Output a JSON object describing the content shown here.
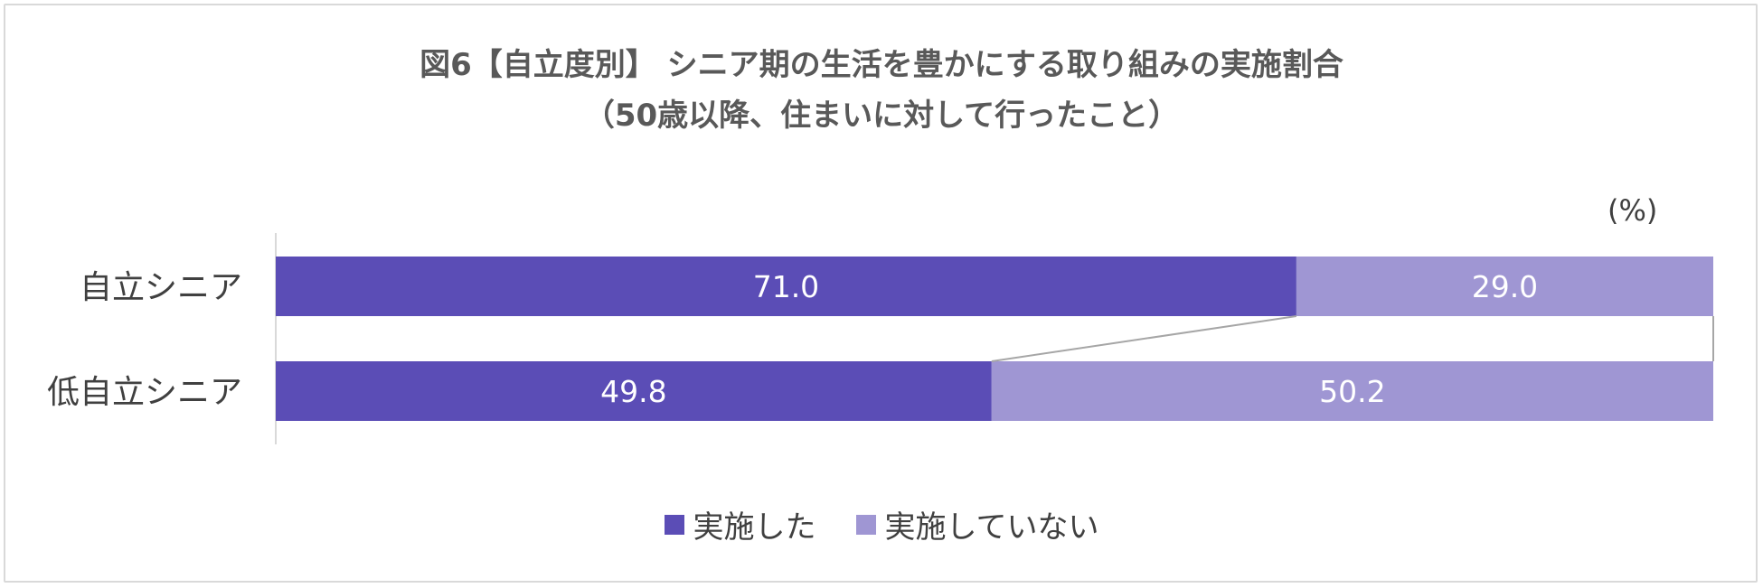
{
  "chart_data": {
    "type": "bar",
    "orientation": "horizontal",
    "stacked": true,
    "title_lines": [
      "図6【自立度別】 シニア期の生活を豊かにする取り組みの実施割合",
      "（50歳以降、住まいに対して行ったこと）"
    ],
    "unit_label": "(%)",
    "categories": [
      "自立シニア",
      "低自立シニア"
    ],
    "series": [
      {
        "name": "実施した",
        "values": [
          71.0,
          49.8
        ],
        "color": "#5B4DB6"
      },
      {
        "name": "実施していない",
        "values": [
          29.0,
          50.2
        ],
        "color": "#9F96D3"
      }
    ],
    "xlim": [
      0,
      100
    ],
    "series_lines": true,
    "legend_position": "bottom",
    "grid": false
  }
}
